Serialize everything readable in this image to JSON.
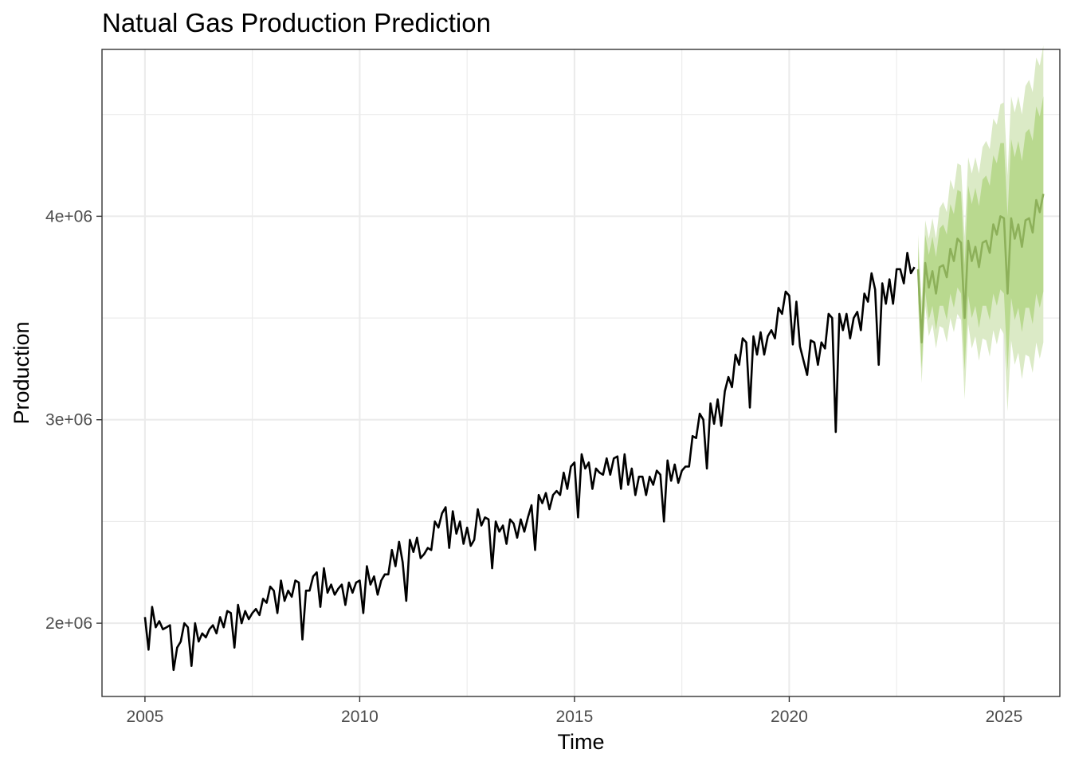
{
  "chart_data": {
    "type": "line",
    "title": "Natual Gas Production Prediction",
    "xlabel": "Time",
    "ylabel": "Production",
    "xlim": [
      2004.0,
      2026.3
    ],
    "ylim": [
      1640000,
      4820000
    ],
    "x_ticks": [
      2005,
      2010,
      2015,
      2020,
      2025
    ],
    "x_tick_labels": [
      "2005",
      "2010",
      "2015",
      "2020",
      "2025"
    ],
    "y_ticks": [
      2000000,
      3000000,
      4000000
    ],
    "y_tick_labels": [
      "2e+06",
      "3e+06",
      "4e+06"
    ],
    "grid": true,
    "legend": "none",
    "colors": {
      "observed": "#000000",
      "forecast_mean": "#8db05a",
      "band_80": "#b9d98f",
      "band_95": "#dbeac6",
      "grid": "#ebebeb",
      "panel_border": "#333333"
    },
    "observed": {
      "start": 2005.0,
      "step": 0.0833333,
      "values": [
        2030000,
        1870000,
        2080000,
        1980000,
        2010000,
        1970000,
        1980000,
        1990000,
        1770000,
        1880000,
        1910000,
        2000000,
        1980000,
        1790000,
        2000000,
        1910000,
        1950000,
        1930000,
        1970000,
        1990000,
        1950000,
        2030000,
        1980000,
        2060000,
        2050000,
        1880000,
        2090000,
        2000000,
        2060000,
        2020000,
        2050000,
        2070000,
        2040000,
        2120000,
        2100000,
        2180000,
        2160000,
        2050000,
        2210000,
        2110000,
        2160000,
        2130000,
        2210000,
        2200000,
        1920000,
        2160000,
        2160000,
        2230000,
        2250000,
        2080000,
        2270000,
        2150000,
        2190000,
        2140000,
        2170000,
        2190000,
        2090000,
        2200000,
        2150000,
        2200000,
        2210000,
        2050000,
        2280000,
        2190000,
        2230000,
        2140000,
        2210000,
        2240000,
        2240000,
        2360000,
        2280000,
        2400000,
        2300000,
        2110000,
        2410000,
        2350000,
        2420000,
        2320000,
        2340000,
        2370000,
        2360000,
        2500000,
        2470000,
        2540000,
        2570000,
        2370000,
        2550000,
        2440000,
        2500000,
        2390000,
        2470000,
        2380000,
        2410000,
        2560000,
        2480000,
        2520000,
        2510000,
        2270000,
        2500000,
        2450000,
        2480000,
        2390000,
        2510000,
        2490000,
        2420000,
        2510000,
        2450000,
        2520000,
        2580000,
        2360000,
        2630000,
        2590000,
        2640000,
        2560000,
        2630000,
        2650000,
        2630000,
        2740000,
        2660000,
        2770000,
        2790000,
        2520000,
        2830000,
        2760000,
        2790000,
        2660000,
        2760000,
        2740000,
        2730000,
        2810000,
        2730000,
        2810000,
        2820000,
        2660000,
        2830000,
        2680000,
        2760000,
        2630000,
        2720000,
        2720000,
        2630000,
        2720000,
        2680000,
        2750000,
        2730000,
        2500000,
        2800000,
        2700000,
        2780000,
        2690000,
        2750000,
        2770000,
        2770000,
        2920000,
        2910000,
        3030000,
        3000000,
        2760000,
        3080000,
        2980000,
        3100000,
        2970000,
        3140000,
        3210000,
        3160000,
        3320000,
        3270000,
        3400000,
        3380000,
        3060000,
        3410000,
        3320000,
        3430000,
        3320000,
        3410000,
        3440000,
        3400000,
        3550000,
        3520000,
        3630000,
        3610000,
        3370000,
        3580000,
        3360000,
        3290000,
        3220000,
        3390000,
        3380000,
        3270000,
        3380000,
        3350000,
        3520000,
        3500000,
        2940000,
        3520000,
        3440000,
        3520000,
        3400000,
        3500000,
        3530000,
        3440000,
        3620000,
        3580000,
        3720000,
        3640000,
        3270000,
        3670000,
        3570000,
        3690000,
        3570000,
        3740000,
        3740000,
        3670000,
        3820000,
        3720000,
        3750000
      ]
    },
    "forecast": {
      "start": 2023.0,
      "step": 0.0833333,
      "mean": [
        3740000,
        3380000,
        3770000,
        3650000,
        3730000,
        3620000,
        3750000,
        3760000,
        3700000,
        3840000,
        3780000,
        3890000,
        3870000,
        3500000,
        3880000,
        3780000,
        3850000,
        3750000,
        3870000,
        3880000,
        3820000,
        3960000,
        3910000,
        4000000,
        3990000,
        3620000,
        3990000,
        3890000,
        3960000,
        3850000,
        3980000,
        3990000,
        3920000,
        4080000,
        4020000,
        4110000
      ],
      "lower_80": [
        3630000,
        3250000,
        3630000,
        3490000,
        3560000,
        3440000,
        3560000,
        3560000,
        3490000,
        3620000,
        3550000,
        3650000,
        3620000,
        3240000,
        3610000,
        3500000,
        3560000,
        3450000,
        3560000,
        3560000,
        3490000,
        3620000,
        3560000,
        3640000,
        3620000,
        3240000,
        3600000,
        3490000,
        3550000,
        3430000,
        3550000,
        3550000,
        3470000,
        3620000,
        3550000,
        3630000
      ],
      "upper_80": [
        3850000,
        3510000,
        3910000,
        3810000,
        3900000,
        3800000,
        3940000,
        3960000,
        3910000,
        4060000,
        4010000,
        4130000,
        4120000,
        3760000,
        4150000,
        4060000,
        4140000,
        4050000,
        4180000,
        4200000,
        4150000,
        4300000,
        4260000,
        4360000,
        4360000,
        4000000,
        4380000,
        4290000,
        4370000,
        4270000,
        4410000,
        4430000,
        4370000,
        4540000,
        4490000,
        4590000
      ],
      "lower_95": [
        3570000,
        3180000,
        3560000,
        3410000,
        3470000,
        3350000,
        3460000,
        3450000,
        3380000,
        3500000,
        3430000,
        3520000,
        3490000,
        3100000,
        3470000,
        3350000,
        3410000,
        3290000,
        3400000,
        3390000,
        3310000,
        3440000,
        3370000,
        3450000,
        3420000,
        3040000,
        3390000,
        3270000,
        3330000,
        3200000,
        3320000,
        3310000,
        3230000,
        3380000,
        3300000,
        3380000
      ],
      "upper_95": [
        3910000,
        3580000,
        3980000,
        3890000,
        3990000,
        3890000,
        4040000,
        4070000,
        4020000,
        4180000,
        4130000,
        4260000,
        4250000,
        3900000,
        4290000,
        4210000,
        4290000,
        4210000,
        4340000,
        4370000,
        4330000,
        4480000,
        4450000,
        4550000,
        4560000,
        4200000,
        4590000,
        4510000,
        4590000,
        4500000,
        4640000,
        4670000,
        4610000,
        4780000,
        4740000,
        4840000
      ]
    }
  }
}
